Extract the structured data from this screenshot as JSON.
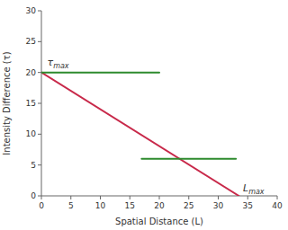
{
  "chart_data": {
    "type": "line",
    "xlabel": "Spatial Distance (L)",
    "ylabel": "Intensity Difference (τ)",
    "series": [
      {
        "color": "#c8294a",
        "x": [
          0,
          33.5
        ],
        "values": [
          20,
          0
        ]
      },
      {
        "color": "#2e8b2e",
        "x": [
          0,
          20
        ],
        "values": [
          20,
          20
        ]
      },
      {
        "color": "#2e8b2e",
        "x": [
          17,
          33
        ],
        "values": [
          6,
          6
        ]
      }
    ],
    "annotations": [
      {
        "text": "τ",
        "subscript": "max",
        "x": 1.0,
        "y": 20.8
      },
      {
        "text": "L",
        "subscript": "max",
        "x": 34.2,
        "y": 0.4
      }
    ],
    "xlim": [
      0,
      40
    ],
    "ylim": [
      0,
      30
    ],
    "xticks": [
      0,
      5,
      10,
      15,
      20,
      25,
      30,
      35,
      40
    ],
    "yticks": [
      0,
      5,
      10,
      15,
      20,
      25,
      30
    ],
    "grid": false
  }
}
